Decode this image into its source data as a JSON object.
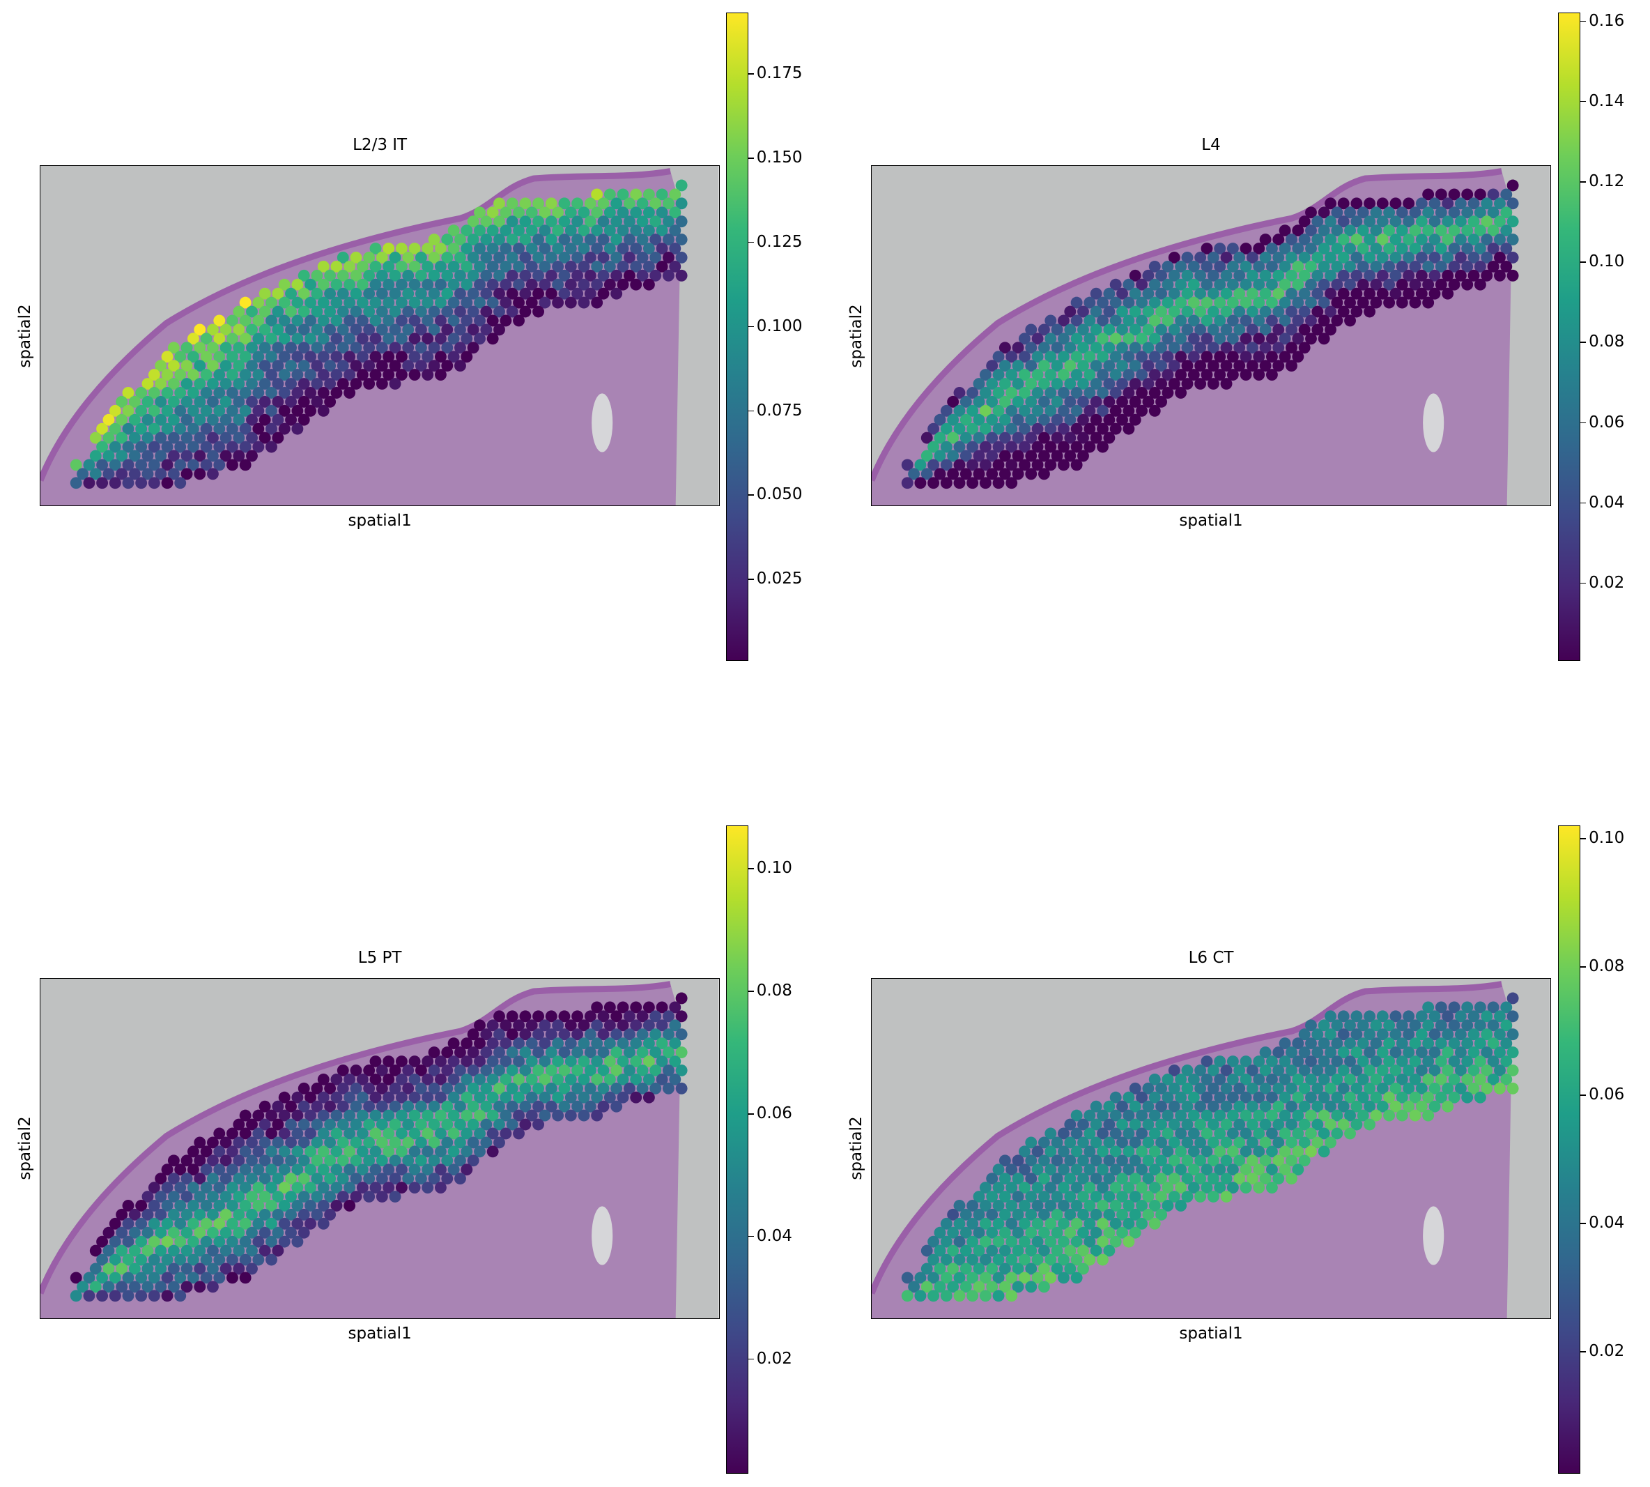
{
  "chart_data": [
    {
      "type": "scatter",
      "subtype": "spatial-spot-map",
      "title": "L2/3 IT",
      "xlabel": "spatial1",
      "ylabel": "spatial2",
      "colormap": "viridis",
      "clim": [
        0.0006,
        0.193
      ],
      "colorbar_ticks": [
        "0.025",
        "0.050",
        "0.075",
        "0.100",
        "0.125",
        "0.150",
        "0.175"
      ],
      "pattern": "high in upper cortical layer (~0.12-0.19), decreasing to ~0.01 in deeper band"
    },
    {
      "type": "scatter",
      "subtype": "spatial-spot-map",
      "title": "L4",
      "xlabel": "spatial1",
      "ylabel": "spatial2",
      "colormap": "viridis",
      "clim": [
        0.0005,
        0.162
      ],
      "colorbar_ticks": [
        "0.02",
        "0.04",
        "0.06",
        "0.08",
        "0.10",
        "0.12",
        "0.14",
        "0.16"
      ],
      "pattern": "peak in middle band (~0.10-0.16), low at edges"
    },
    {
      "type": "scatter",
      "subtype": "spatial-spot-map",
      "title": "L5 PT",
      "xlabel": "spatial1",
      "ylabel": "spatial2",
      "colormap": "viridis",
      "clim": [
        0.0012,
        0.107
      ],
      "colorbar_ticks": [
        "0.02",
        "0.04",
        "0.06",
        "0.08",
        "0.10"
      ],
      "pattern": "peak in lower-middle band (~0.06-0.10)"
    },
    {
      "type": "scatter",
      "subtype": "spatial-spot-map",
      "title": "L6 CT",
      "xlabel": "spatial1",
      "ylabel": "spatial2",
      "colormap": "viridis",
      "clim": [
        0.0009,
        0.102
      ],
      "colorbar_ticks": [
        "0.02",
        "0.04",
        "0.06",
        "0.08",
        "0.10"
      ],
      "pattern": "higher in deeper band (~0.05-0.10)"
    }
  ]
}
